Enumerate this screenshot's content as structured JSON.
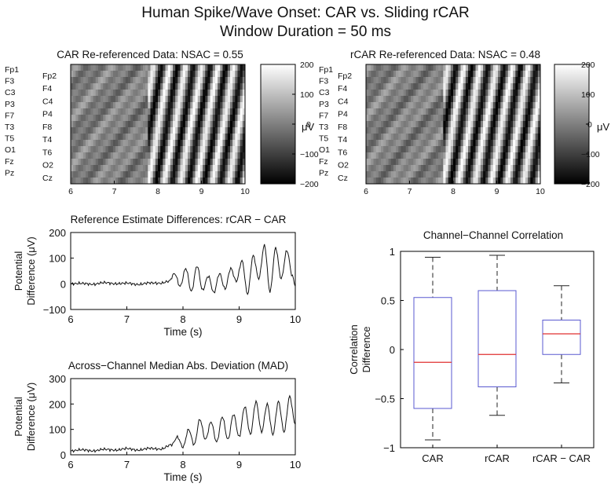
{
  "figure": {
    "title_line1": "Human Spike/Wave Onset: CAR vs. Sliding rCAR",
    "title_line2": "Window Duration = 50 ms"
  },
  "chart_data": [
    {
      "type": "heatmap",
      "title": "CAR Re-referenced Data: NSAC = 0.55",
      "x_ticks": [
        6,
        7,
        8,
        9,
        10
      ],
      "xlim": [
        6,
        10
      ],
      "channels_left": [
        "Fp1",
        "F3",
        "C3",
        "P3",
        "F7",
        "T3",
        "T5",
        "O1",
        "Fz",
        "Pz"
      ],
      "channels_right": [
        "Fp2",
        "F4",
        "C4",
        "P4",
        "F8",
        "T4",
        "T6",
        "O2",
        "Cz"
      ],
      "colorbar": {
        "ticks": [
          200,
          100,
          0,
          -100,
          -200
        ],
        "unit": "μV",
        "range": [
          -200,
          200
        ]
      }
    },
    {
      "type": "heatmap",
      "title": "rCAR Re-referenced Data: NSAC = 0.48",
      "x_ticks": [
        6,
        7,
        8,
        9,
        10
      ],
      "xlim": [
        6,
        10
      ],
      "channels_left": [
        "Fp1",
        "F3",
        "C3",
        "P3",
        "F7",
        "T3",
        "T5",
        "O1",
        "Fz",
        "Pz"
      ],
      "channels_right": [
        "Fp2",
        "F4",
        "C4",
        "P4",
        "F8",
        "T4",
        "T6",
        "O2",
        "Cz"
      ],
      "colorbar": {
        "ticks": [
          200,
          100,
          0,
          -100,
          -200
        ],
        "unit": "μV",
        "range": [
          -200,
          200
        ]
      }
    },
    {
      "type": "line",
      "title": "Reference Estimate Differences: rCAR − CAR",
      "xlabel": "Time (s)",
      "ylabel_line1": "Potential",
      "ylabel_line2": "Difference (μV)",
      "xlim": [
        6,
        10
      ],
      "ylim": [
        -100,
        200
      ],
      "x_ticks": [
        6,
        7,
        8,
        9,
        10
      ],
      "y_ticks": [
        200,
        100,
        0,
        -100
      ],
      "x": [
        6.0,
        6.2,
        6.4,
        6.6,
        6.8,
        7.0,
        7.2,
        7.4,
        7.6,
        7.75,
        7.85,
        7.95,
        8.05,
        8.15,
        8.25,
        8.35,
        8.45,
        8.55,
        8.65,
        8.75,
        8.85,
        8.95,
        9.05,
        9.15,
        9.25,
        9.35,
        9.45,
        9.55,
        9.65,
        9.75,
        9.85,
        9.95,
        10.0
      ],
      "y": [
        0,
        2,
        -2,
        5,
        0,
        3,
        -3,
        4,
        2,
        10,
        40,
        -10,
        60,
        -30,
        70,
        -25,
        30,
        -35,
        40,
        -20,
        60,
        10,
        90,
        -40,
        110,
        20,
        150,
        -30,
        140,
        20,
        130,
        30,
        -10
      ]
    },
    {
      "type": "line",
      "title": "Across−Channel Median Abs. Deviation (MAD)",
      "xlabel": "Time (s)",
      "ylabel_line1": "Potential",
      "ylabel_line2": "Difference (μV)",
      "xlim": [
        6,
        10
      ],
      "ylim": [
        0,
        300
      ],
      "x_ticks": [
        6,
        7,
        8,
        9,
        10
      ],
      "y_ticks": [
        300,
        200,
        100,
        0
      ],
      "x": [
        6.0,
        6.2,
        6.4,
        6.6,
        6.8,
        7.0,
        7.2,
        7.4,
        7.6,
        7.8,
        7.9,
        8.0,
        8.1,
        8.2,
        8.3,
        8.4,
        8.5,
        8.6,
        8.7,
        8.8,
        8.9,
        9.0,
        9.1,
        9.2,
        9.3,
        9.4,
        9.5,
        9.6,
        9.7,
        9.8,
        9.9,
        10.0
      ],
      "y": [
        15,
        20,
        15,
        22,
        18,
        25,
        18,
        26,
        22,
        40,
        70,
        30,
        100,
        40,
        140,
        60,
        130,
        50,
        150,
        60,
        160,
        70,
        190,
        80,
        210,
        90,
        200,
        80,
        210,
        90,
        230,
        120
      ]
    },
    {
      "type": "box",
      "title": "Channel−Channel Correlation",
      "ylabel_line1": "Correlation",
      "ylabel_line2": "Difference",
      "ylim": [
        -1,
        1
      ],
      "y_ticks": [
        1,
        0.5,
        0,
        -0.5,
        -1
      ],
      "categories": [
        "CAR",
        "rCAR",
        "rCAR − CAR"
      ],
      "boxes": [
        {
          "whisker_low": -0.92,
          "q1": -0.6,
          "median": -0.13,
          "q3": 0.53,
          "whisker_high": 0.94
        },
        {
          "whisker_low": -0.67,
          "q1": -0.38,
          "median": -0.05,
          "q3": 0.6,
          "whisker_high": 0.96
        },
        {
          "whisker_low": -0.34,
          "q1": -0.05,
          "median": 0.16,
          "q3": 0.3,
          "whisker_high": 0.65
        }
      ],
      "box_color": "#5a5ad0",
      "median_color": "#e03030"
    }
  ]
}
